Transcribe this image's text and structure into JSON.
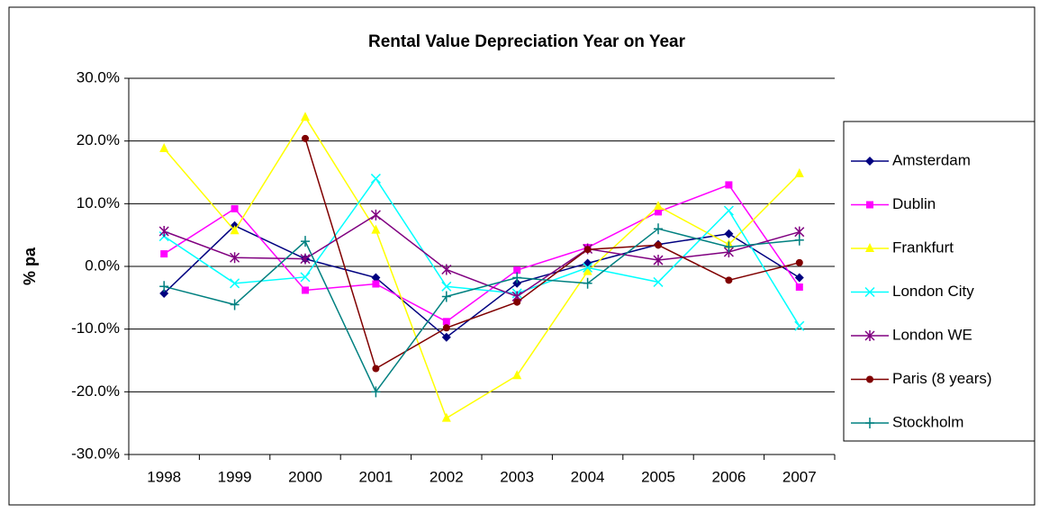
{
  "chart_data": {
    "type": "line",
    "title": "Rental Value Depreciation Year on Year",
    "y_label": "% pa",
    "categories": [
      "1998",
      "1999",
      "2000",
      "2001",
      "2002",
      "2003",
      "2004",
      "2005",
      "2006",
      "2007"
    ],
    "ylim": [
      -30,
      30
    ],
    "yticks": [
      {
        "value": -30,
        "label": "-30.0%"
      },
      {
        "value": -20,
        "label": "-20.0%"
      },
      {
        "value": -10,
        "label": "-10.0%"
      },
      {
        "value": 0,
        "label": "0.0%"
      },
      {
        "value": 10,
        "label": "10.0%"
      },
      {
        "value": 20,
        "label": "20.0%"
      },
      {
        "value": 30,
        "label": "30.0%"
      }
    ],
    "grid": true,
    "legend": "right",
    "series": [
      {
        "name": "Amsterdam",
        "color": "#000080",
        "marker": "diamond",
        "values": [
          -4.3,
          6.5,
          1.2,
          -1.8,
          -11.3,
          -2.7,
          0.5,
          3.5,
          5.2,
          -1.8
        ]
      },
      {
        "name": "Dublin",
        "color": "#ff00ff",
        "marker": "square",
        "values": [
          2.0,
          9.2,
          -3.8,
          -2.8,
          -8.8,
          -0.6,
          3.0,
          8.7,
          13.0,
          -3.3
        ]
      },
      {
        "name": "Frankfurt",
        "color": "#ffff00",
        "marker": "triangle",
        "values": [
          18.8,
          5.7,
          23.8,
          5.8,
          -24.2,
          -17.4,
          -0.8,
          9.6,
          3.5,
          14.8
        ]
      },
      {
        "name": "London City",
        "color": "#00ffff",
        "marker": "x",
        "values": [
          4.8,
          -2.7,
          -1.7,
          14.0,
          -3.2,
          -4.3,
          -0.2,
          -2.5,
          8.9,
          -9.5
        ]
      },
      {
        "name": "London WE",
        "color": "#800080",
        "marker": "star",
        "values": [
          5.6,
          1.4,
          1.2,
          8.2,
          -0.5,
          -4.8,
          2.8,
          1.0,
          2.3,
          5.5
        ]
      },
      {
        "name": "Paris (8 years)",
        "color": "#800000",
        "marker": "circle",
        "values": [
          null,
          null,
          20.4,
          -16.3,
          -9.8,
          -5.7,
          2.7,
          3.4,
          -2.2,
          0.6
        ]
      },
      {
        "name": "Stockholm",
        "color": "#008080",
        "marker": "plus",
        "values": [
          -3.2,
          -6.1,
          4.0,
          -20.0,
          -4.8,
          -1.8,
          -2.7,
          6.0,
          3.1,
          4.2
        ]
      }
    ]
  }
}
